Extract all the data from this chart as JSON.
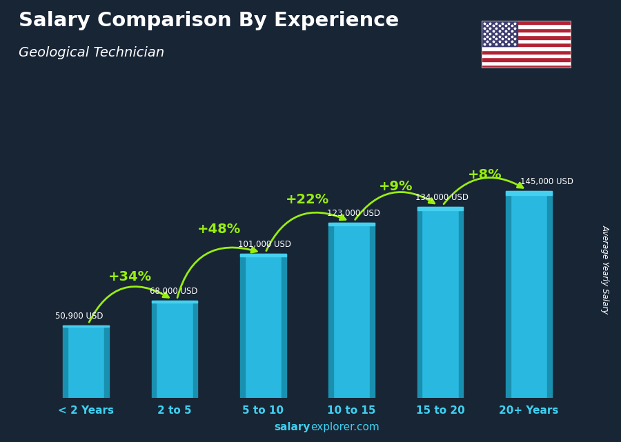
{
  "title": "Salary Comparison By Experience",
  "subtitle": "Geological Technician",
  "categories": [
    "< 2 Years",
    "2 to 5",
    "5 to 10",
    "10 to 15",
    "15 to 20",
    "20+ Years"
  ],
  "values": [
    50900,
    68000,
    101000,
    123000,
    134000,
    145000
  ],
  "value_labels": [
    "50,900 USD",
    "68,000 USD",
    "101,000 USD",
    "123,000 USD",
    "134,000 USD",
    "145,000 USD"
  ],
  "pct_labels": [
    "+34%",
    "+48%",
    "+22%",
    "+9%",
    "+8%"
  ],
  "bar_color_main": "#29b8e0",
  "bar_color_left": "#1a90b0",
  "bar_color_right": "#1a90b0",
  "bar_color_top": "#45d0f0",
  "background_color": "#182535",
  "text_color_white": "#ffffff",
  "text_color_green": "#99ee11",
  "text_color_cyan": "#40d0f0",
  "ylabel": "Average Yearly Salary",
  "footer_bold": "salary",
  "footer_normal": "explorer.com",
  "ylim": [
    0,
    180000
  ],
  "bar_width": 0.52
}
